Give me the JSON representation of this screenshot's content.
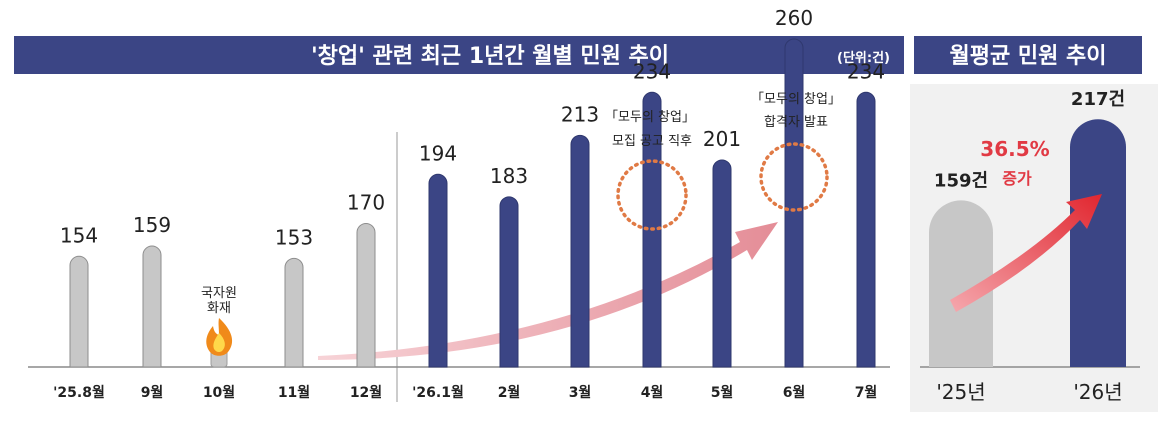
{
  "colors": {
    "banner": "#3b4585",
    "bar_2025": "#c7c7c7",
    "bar_2026": "#3b4585",
    "arrow_left": "#e9a3ab",
    "arrow_right": "#e13a44",
    "circle": "#e07a45",
    "flame_outer": "#f08a1a",
    "flame_inner": "#ffd84a"
  },
  "left_panel": {
    "title": "'창업' 관련 최근 1년간  월별 민원 추이",
    "unit": "(단위:건)"
  },
  "right_panel": {
    "title": "월평균 민원 추이",
    "increase_pct": "36.5%",
    "increase_word": "증가"
  },
  "annotations": {
    "fire": [
      "국자원",
      "화재"
    ],
    "recruit": [
      "「모두의 창업」",
      "모집 공고 직후"
    ],
    "winners": [
      "「모두의 창업」",
      "합격자 발표"
    ]
  },
  "chart_data": [
    {
      "type": "bar",
      "title": "'창업' 관련 최근 1년간  월별 민원 추이",
      "unit": "(단위:건)",
      "categories": [
        "'25.8월",
        "9월",
        "10월",
        "11월",
        "12월",
        "'26.1월",
        "2월",
        "3월",
        "4월",
        "5월",
        "6월",
        "7월"
      ],
      "values": [
        154,
        159,
        null,
        153,
        170,
        194,
        183,
        213,
        234,
        201,
        260,
        234
      ],
      "value_labels": [
        "154",
        "159",
        "",
        "153",
        "170",
        "194",
        "183",
        "213",
        "234",
        "201",
        "260",
        "234"
      ],
      "series_color": [
        "gray",
        "gray",
        "gray",
        "gray",
        "gray",
        "navy",
        "navy",
        "navy",
        "navy",
        "navy",
        "navy",
        "navy"
      ],
      "highlighted": [
        "4월",
        "6월"
      ],
      "ylim": [
        0,
        280
      ]
    },
    {
      "type": "bar",
      "title": "월평균 민원 추이",
      "categories": [
        "'25년",
        "'26년"
      ],
      "values": [
        159,
        217
      ],
      "value_labels": [
        "159건",
        "217건"
      ],
      "ylim": [
        0,
        230
      ]
    }
  ]
}
